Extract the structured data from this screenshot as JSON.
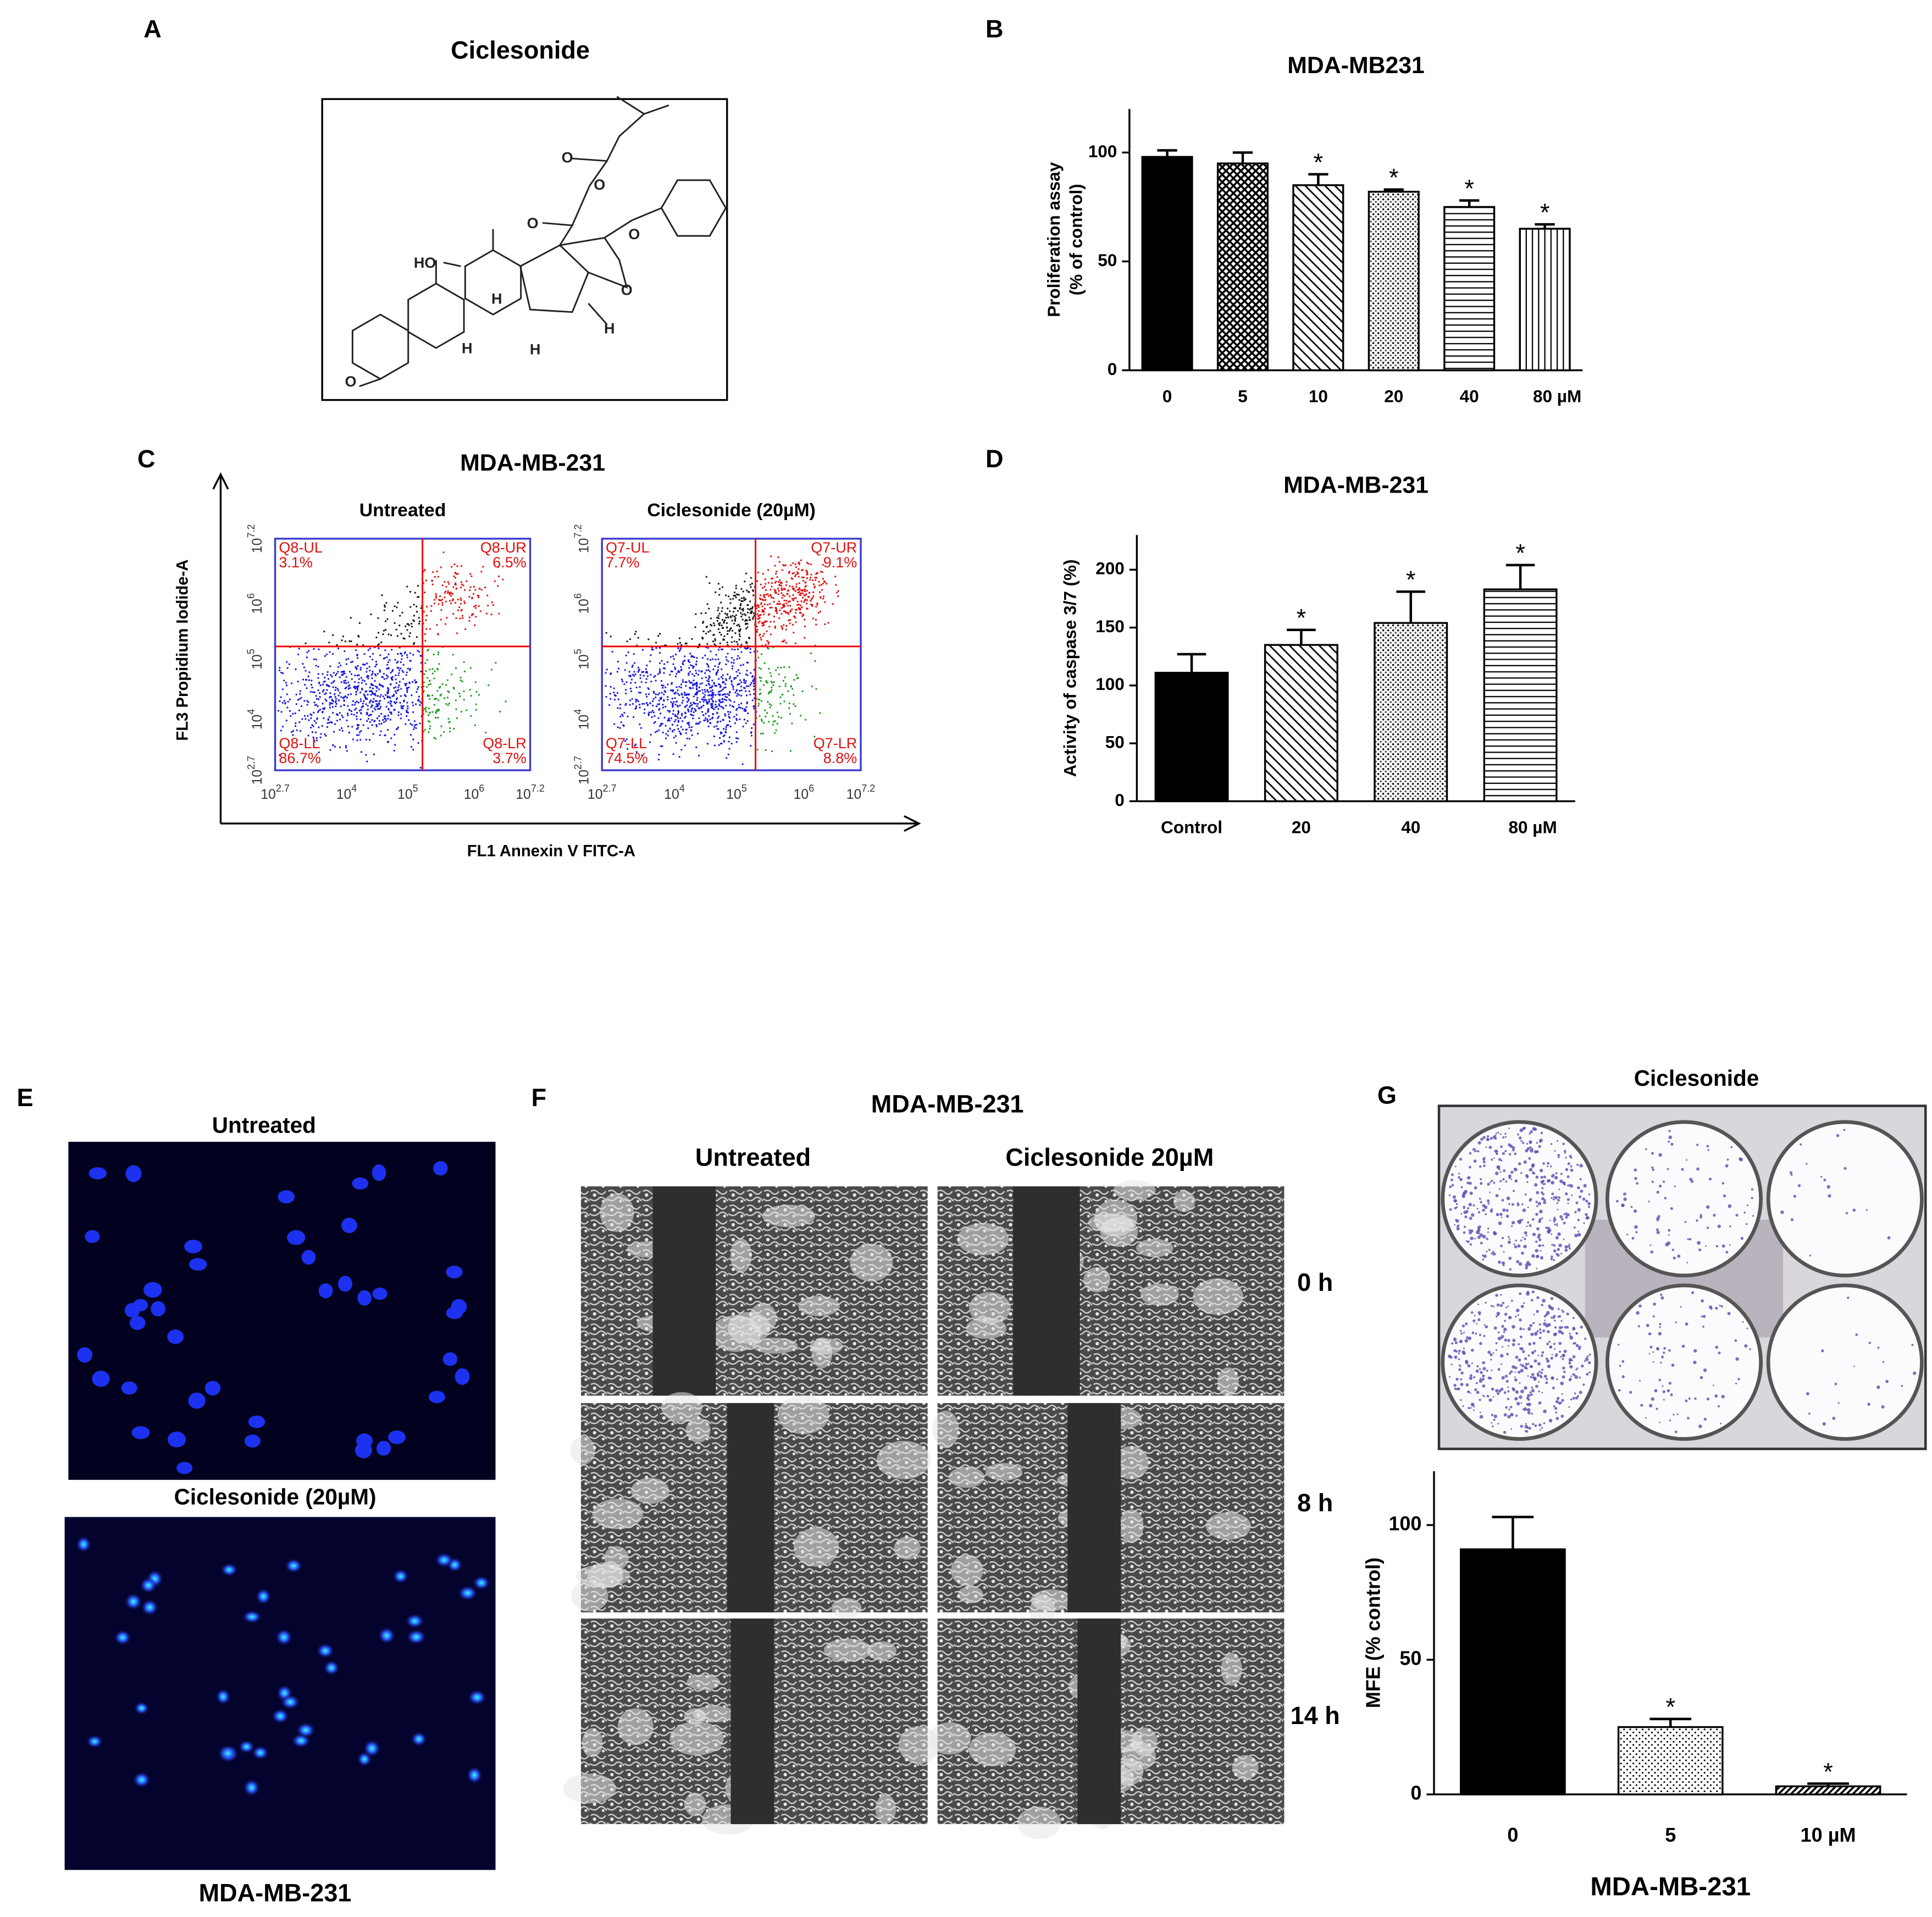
{
  "panel_labels": [
    "A",
    "B",
    "C",
    "D",
    "E",
    "F",
    "G"
  ],
  "panel_a": {
    "title": "Ciclesonide",
    "atoms": [
      "HO",
      "O",
      "H",
      "H",
      "H",
      "O",
      "O",
      "O",
      "O",
      "O",
      "H"
    ]
  },
  "chart_data": [
    {
      "type": "bar",
      "title": "MDA-MB231",
      "y_label": [
        "Proliferation assay",
        "(% of control)"
      ],
      "categories": [
        "0",
        "5",
        "10",
        "20",
        "40",
        "80 µM"
      ],
      "values": [
        98,
        95,
        85,
        82,
        75,
        65
      ],
      "errors": [
        3,
        5,
        5,
        1,
        3,
        2
      ],
      "significance": [
        null,
        null,
        "*",
        "*",
        "*",
        "*"
      ],
      "patterns": [
        "solid",
        "crosshatch",
        "diagonal",
        "dots",
        "hlines",
        "vlines"
      ],
      "color": "#000000",
      "ylim": [
        0,
        120
      ],
      "yticks": [
        0,
        50,
        100
      ]
    },
    {
      "type": "bar",
      "title": "MDA-MB-231",
      "y_label": [
        "Activity of caspase 3/7 (%)"
      ],
      "categories": [
        "Control",
        "20",
        "40",
        "80 µM"
      ],
      "values": [
        111,
        135,
        154,
        183
      ],
      "errors": [
        16,
        13,
        27,
        21
      ],
      "significance": [
        null,
        "*",
        "*",
        "*"
      ],
      "patterns": [
        "solid",
        "diagonal",
        "dots",
        "hlines"
      ],
      "color": "#000000",
      "ylim": [
        0,
        230
      ],
      "yticks": [
        0,
        50,
        100,
        150,
        200
      ]
    },
    {
      "type": "bar",
      "x_label": "MDA-MB-231",
      "y_label": [
        "MFE (% control)"
      ],
      "categories": [
        "0",
        "5",
        "10 µM"
      ],
      "values": [
        91,
        25,
        3
      ],
      "errors": [
        12,
        3,
        1
      ],
      "significance": [
        null,
        "*",
        "*"
      ],
      "patterns": [
        "solid",
        "sparsedots",
        "densediag"
      ],
      "color": "#000000",
      "ylim": [
        0,
        120
      ],
      "yticks": [
        0,
        50,
        100
      ]
    }
  ],
  "panel_c": {
    "title": "MDA-MB-231",
    "y_label": "FL3 Propidium Iodide-A",
    "x_label": "FL1 Annexin V FITC-A",
    "tick_base": "10",
    "x_tick_exponents": [
      "2.7",
      "4",
      "5",
      "6",
      "7.2"
    ],
    "y_tick_exponents": [
      "7.2",
      "6",
      "5",
      "4",
      "2.7"
    ],
    "plots": [
      {
        "title": "Untreated",
        "quadrants": [
          {
            "name": "Q8-UL",
            "percent": "3.1%"
          },
          {
            "name": "Q8-UR",
            "percent": "6.5%"
          },
          {
            "name": "Q8-LL",
            "percent": "86.7%"
          },
          {
            "name": "Q8-LR",
            "percent": "3.7%"
          }
        ]
      },
      {
        "title": "Ciclesonide (20µM)",
        "quadrants": [
          {
            "name": "Q7-UL",
            "percent": "7.7%"
          },
          {
            "name": "Q7-UR",
            "percent": "9.1%"
          },
          {
            "name": "Q7-LL",
            "percent": "74.5%"
          },
          {
            "name": "Q7-LR",
            "percent": "8.8%"
          }
        ]
      }
    ]
  },
  "panel_e": {
    "top_label": "Untreated",
    "bottom_label": "Ciclesonide (20µM)",
    "caption": "MDA-MB-231"
  },
  "panel_f": {
    "title": "MDA-MB-231",
    "columns": [
      "Untreated",
      "Ciclesonide 20µM"
    ],
    "rows": [
      "0 h",
      "8 h",
      "14 h"
    ]
  },
  "panel_g": {
    "photo_title": "Ciclesonide"
  }
}
